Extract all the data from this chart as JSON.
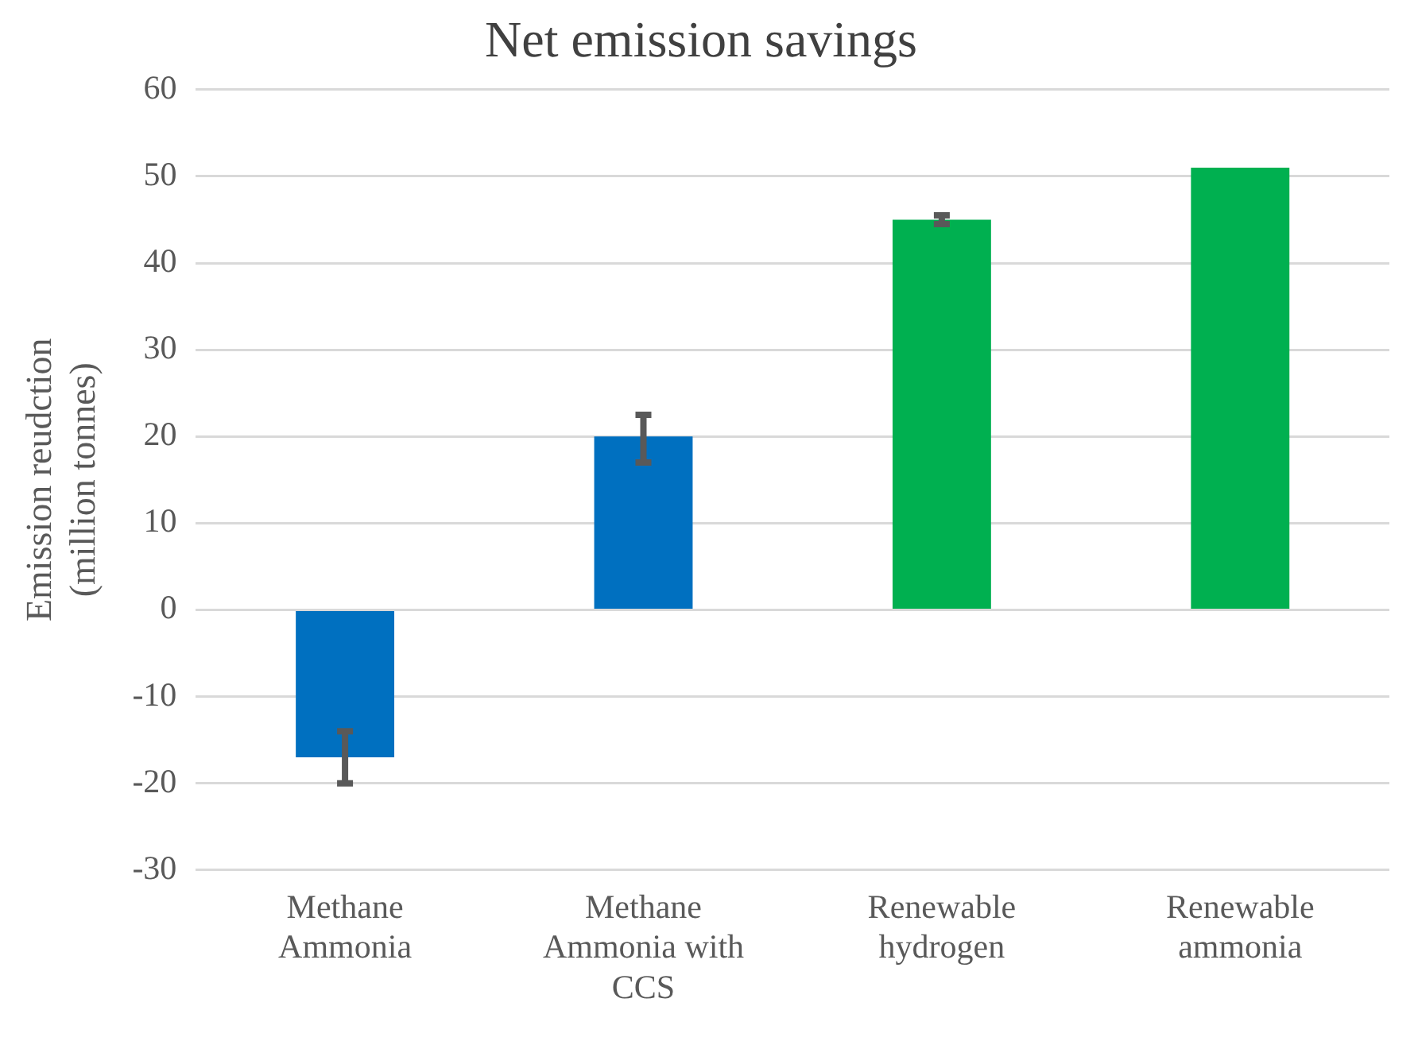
{
  "chart_data": {
    "type": "bar",
    "title": "Net emission savings",
    "ylabel": "Emission reudction\n(million tonnes)",
    "categories": [
      "Methane Ammonia",
      "Methane Ammonia with CCS",
      "Renewable hydrogen",
      "Renewable ammonia"
    ],
    "values": [
      -17,
      20,
      45,
      51
    ],
    "colors": [
      "#0070c0",
      "#0070c0",
      "#00b050",
      "#00b050"
    ],
    "errors": [
      [
        -20,
        -14
      ],
      [
        17,
        22.5
      ],
      [
        44.5,
        45.5
      ],
      null
    ],
    "ylim": [
      -30,
      60
    ],
    "yticks": [
      -30,
      -20,
      -10,
      0,
      10,
      20,
      30,
      40,
      50,
      60
    ],
    "grid": "y",
    "legend": false
  }
}
